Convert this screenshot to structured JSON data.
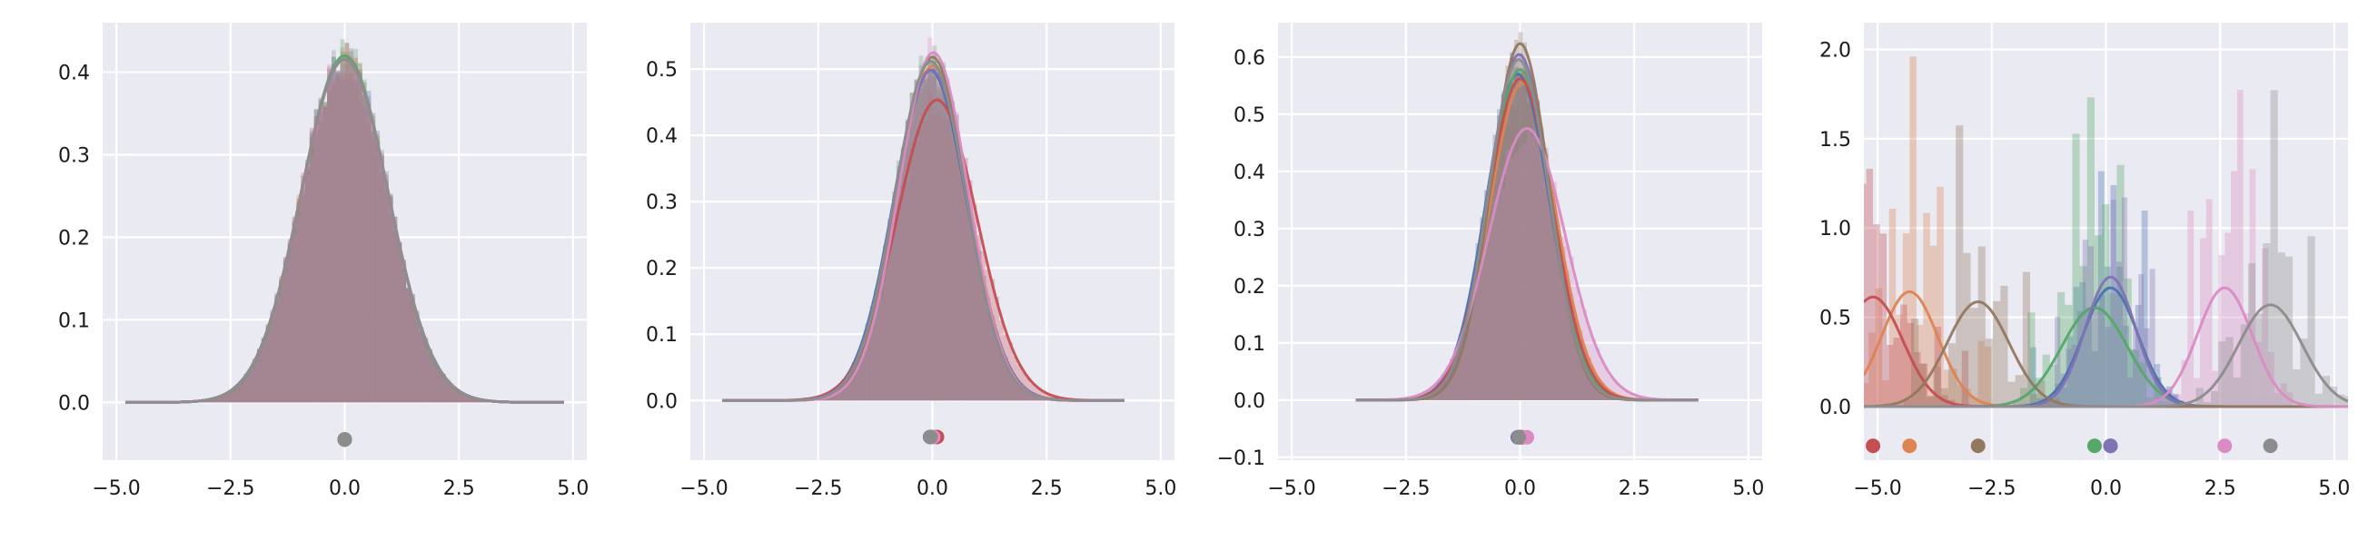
{
  "chart_data": [
    {
      "type": "histogram_kde",
      "title": "",
      "xlabel": "",
      "ylabel": "",
      "xlim": [
        -5.3,
        5.3
      ],
      "ylim": [
        -0.07,
        0.46
      ],
      "xticks": [
        -5.0,
        -2.5,
        0.0,
        2.5,
        5.0
      ],
      "xtick_labels": [
        "−5.0",
        "−2.5",
        "0.0",
        "2.5",
        "5.0"
      ],
      "yticks": [
        0.0,
        0.1,
        0.2,
        0.3,
        0.4
      ],
      "ytick_labels": [
        "0.0",
        "0.1",
        "0.2",
        "0.3",
        "0.4"
      ],
      "grid": true,
      "legend": "none",
      "hist_range": [
        -4.8,
        4.8
      ],
      "hist_bins": 100,
      "hist_alpha": 0.3,
      "curve_range": [
        -4.8,
        4.8
      ],
      "dot_y": -0.045,
      "series": [
        {
          "color": "#4c72b0",
          "mean": 0.0,
          "sd": 0.96,
          "dot_x": 0.0
        },
        {
          "color": "#dd8452",
          "mean": 0.0,
          "sd": 0.96,
          "dot_x": 0.0
        },
        {
          "color": "#55a868",
          "mean": 0.0,
          "sd": 0.95,
          "dot_x": 0.0
        },
        {
          "color": "#c44e52",
          "mean": 0.0,
          "sd": 0.96,
          "dot_x": 0.0
        },
        {
          "color": "#8172b3",
          "mean": 0.0,
          "sd": 0.96,
          "dot_x": 0.0
        },
        {
          "color": "#937860",
          "mean": 0.0,
          "sd": 0.96,
          "dot_x": 0.0
        },
        {
          "color": "#da8bc3",
          "mean": 0.0,
          "sd": 0.96,
          "dot_x": 0.0
        },
        {
          "color": "#8c8c8c",
          "mean": 0.0,
          "sd": 0.96,
          "dot_x": 0.0
        }
      ]
    },
    {
      "type": "histogram_kde",
      "title": "",
      "xlabel": "",
      "ylabel": "",
      "xlim": [
        -5.3,
        5.3
      ],
      "ylim": [
        -0.09,
        0.57
      ],
      "xticks": [
        -5.0,
        -2.5,
        0.0,
        2.5,
        5.0
      ],
      "xtick_labels": [
        "−5.0",
        "−2.5",
        "0.0",
        "2.5",
        "5.0"
      ],
      "yticks": [
        0.0,
        0.1,
        0.2,
        0.3,
        0.4,
        0.5
      ],
      "ytick_labels": [
        "0.0",
        "0.1",
        "0.2",
        "0.3",
        "0.4",
        "0.5"
      ],
      "grid": true,
      "legend": "none",
      "hist_range": [
        -4.6,
        4.2
      ],
      "hist_bins": 90,
      "hist_alpha": 0.3,
      "curve_range": [
        -4.6,
        4.2
      ],
      "dot_y": -0.055,
      "series": [
        {
          "color": "#4c72b0",
          "mean": -0.05,
          "sd": 0.8,
          "dot_x": -0.05
        },
        {
          "color": "#dd8452",
          "mean": 0.0,
          "sd": 0.79,
          "dot_x": 0.0
        },
        {
          "color": "#55a868",
          "mean": -0.03,
          "sd": 0.78,
          "dot_x": -0.03
        },
        {
          "color": "#c44e52",
          "mean": 0.1,
          "sd": 0.88,
          "dot_x": 0.1
        },
        {
          "color": "#8172b3",
          "mean": -0.02,
          "sd": 0.8,
          "dot_x": -0.02
        },
        {
          "color": "#937860",
          "mean": 0.0,
          "sd": 0.77,
          "dot_x": 0.0
        },
        {
          "color": "#da8bc3",
          "mean": 0.02,
          "sd": 0.76,
          "dot_x": 0.02
        },
        {
          "color": "#8c8c8c",
          "mean": -0.04,
          "sd": 0.78,
          "dot_x": -0.04
        }
      ]
    },
    {
      "type": "histogram_kde",
      "title": "",
      "xlabel": "",
      "ylabel": "",
      "xlim": [
        -5.3,
        5.3
      ],
      "ylim": [
        -0.105,
        0.66
      ],
      "xticks": [
        -5.0,
        -2.5,
        0.0,
        2.5,
        5.0
      ],
      "xtick_labels": [
        "−5.0",
        "−2.5",
        "0.0",
        "2.5",
        "5.0"
      ],
      "yticks": [
        -0.1,
        0.0,
        0.1,
        0.2,
        0.3,
        0.4,
        0.5,
        0.6
      ],
      "ytick_labels": [
        "−0.1",
        "0.0",
        "0.1",
        "0.2",
        "0.3",
        "0.4",
        "0.5",
        "0.6"
      ],
      "grid": true,
      "legend": "none",
      "hist_range": [
        -3.6,
        3.9
      ],
      "hist_bins": 80,
      "hist_alpha": 0.3,
      "curve_range": [
        -3.6,
        3.9
      ],
      "dot_y": -0.065,
      "series": [
        {
          "color": "#4c72b0",
          "mean": -0.05,
          "sd": 0.7,
          "dot_x": -0.05
        },
        {
          "color": "#dd8452",
          "mean": 0.05,
          "sd": 0.72,
          "dot_x": 0.05
        },
        {
          "color": "#55a868",
          "mean": 0.0,
          "sd": 0.69,
          "dot_x": 0.0
        },
        {
          "color": "#c44e52",
          "mean": 0.0,
          "sd": 0.71,
          "dot_x": 0.0
        },
        {
          "color": "#8172b3",
          "mean": -0.02,
          "sd": 0.66,
          "dot_x": -0.02
        },
        {
          "color": "#937860",
          "mean": 0.0,
          "sd": 0.64,
          "dot_x": 0.0
        },
        {
          "color": "#da8bc3",
          "mean": 0.15,
          "sd": 0.84,
          "dot_x": 0.15
        },
        {
          "color": "#8c8c8c",
          "mean": -0.03,
          "sd": 0.67,
          "dot_x": -0.03
        }
      ]
    },
    {
      "type": "histogram_kde",
      "title": "",
      "xlabel": "",
      "ylabel": "",
      "xlim": [
        -5.3,
        5.3
      ],
      "ylim": [
        -0.3,
        2.15
      ],
      "xticks": [
        -5.0,
        -2.5,
        0.0,
        2.5,
        5.0
      ],
      "xtick_labels": [
        "−5.0",
        "−2.5",
        "0.0",
        "2.5",
        "5.0"
      ],
      "yticks": [
        0.0,
        0.5,
        1.0,
        1.5,
        2.0
      ],
      "ytick_labels": [
        "0.0",
        "0.5",
        "1.0",
        "1.5",
        "2.0"
      ],
      "grid": true,
      "legend": "none",
      "hist_alpha": 0.35,
      "hist_bins": 28,
      "curve_range": [
        -5.3,
        5.3
      ],
      "dot_y": -0.22,
      "series": [
        {
          "color": "#4c72b0",
          "mean": 0.1,
          "sd": 0.6,
          "spread": 1.0,
          "dot_x": 0.1
        },
        {
          "color": "#dd8452",
          "mean": -4.3,
          "sd": 0.62,
          "spread": 1.1,
          "dot_x": -4.3
        },
        {
          "color": "#55a868",
          "mean": -0.25,
          "sd": 0.72,
          "spread": 1.2,
          "dot_x": -0.25
        },
        {
          "color": "#c44e52",
          "mean": -5.1,
          "sd": 0.65,
          "spread": 1.1,
          "dot_x": -5.1
        },
        {
          "color": "#8172b3",
          "mean": 0.1,
          "sd": 0.55,
          "spread": 0.9,
          "dot_x": 0.1
        },
        {
          "color": "#937860",
          "mean": -2.8,
          "sd": 0.68,
          "spread": 1.2,
          "dot_x": -2.8
        },
        {
          "color": "#da8bc3",
          "mean": 2.6,
          "sd": 0.6,
          "spread": 1.0,
          "dot_x": 2.6
        },
        {
          "color": "#8c8c8c",
          "mean": 3.6,
          "sd": 0.7,
          "spread": 1.2,
          "dot_x": 3.6
        }
      ]
    }
  ]
}
